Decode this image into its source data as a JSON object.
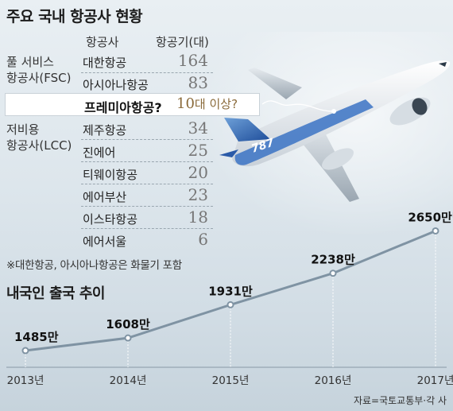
{
  "header": {
    "title": "주요 국내 항공사 현황"
  },
  "fleet_table": {
    "col_airline": "항공사",
    "col_aircraft": "항공기(대)",
    "group_fsc": [
      "풀 서비스",
      "항공사(FSC)"
    ],
    "group_lcc": [
      "저비용",
      "항공사(LCC)"
    ],
    "rows": [
      {
        "name": "대한항공",
        "value": "164"
      },
      {
        "name": "아시아나항공",
        "value": "83"
      },
      {
        "name": "제주항공",
        "value": "34"
      },
      {
        "name": "진에어",
        "value": "25"
      },
      {
        "name": "티웨이항공",
        "value": "20"
      },
      {
        "name": "에어부산",
        "value": "23"
      },
      {
        "name": "이스타항공",
        "value": "18"
      },
      {
        "name": "에어서울",
        "value": "6"
      }
    ],
    "highlight": {
      "name": "프레미아항공?",
      "value_number": "10",
      "value_suffix": "대 이상?"
    },
    "note": "※대한항공, 아시아나항공은 화물기 포함"
  },
  "chart_data": {
    "type": "line",
    "title": "내국인 출국 추이",
    "x": [
      "2013년",
      "2014년",
      "2015년",
      "2016년",
      "2017년"
    ],
    "values": [
      1485,
      1608,
      1931,
      2238,
      2650
    ],
    "labels": [
      "1485만",
      "1608만",
      "1931만",
      "2238만",
      "2650만명"
    ],
    "unit": "만명",
    "ylim": [
      1400,
      2700
    ],
    "grid": false,
    "colors": {
      "line": "#7f93a3",
      "point": "#ffffff",
      "point_stroke": "#7f93a3",
      "guide": "#ffffff"
    }
  },
  "footer": {
    "source": "자료=국토교통부·각 사"
  },
  "colors": {
    "highlight_value": "#8a6a3a",
    "plane_body": "#f4f6f8",
    "plane_tail": "#2a5aa8"
  },
  "illustration": {
    "livery_text": "787"
  }
}
